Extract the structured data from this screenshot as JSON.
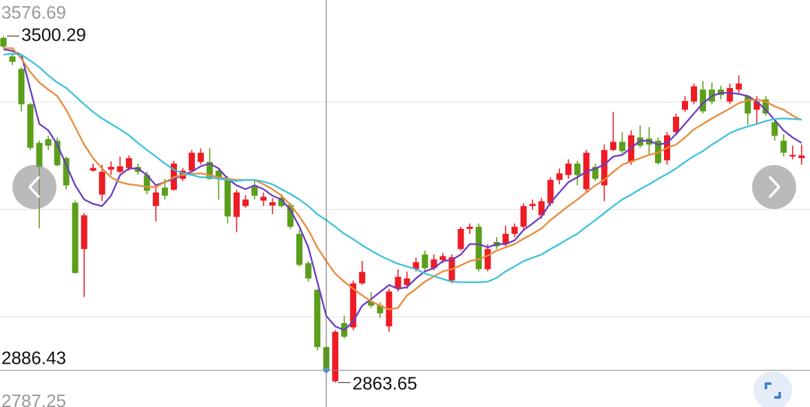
{
  "chart_data": {
    "type": "candlestick",
    "ylim": [
      2787.25,
      3576.69
    ],
    "yticks": [
      2787.25,
      3576.69
    ],
    "grid": true,
    "up_color": "#ee1c24",
    "down_color": "#5b9e1a",
    "open": [
      3497,
      3463,
      3440,
      3375,
      3304,
      3311,
      3308,
      3276,
      3194,
      3109,
      3253,
      3209,
      3255,
      3251,
      3258,
      3260,
      3245,
      3188,
      3222,
      3218,
      3238,
      3253,
      3269,
      3269,
      3253,
      3238,
      3168,
      3188,
      3226,
      3198,
      3189,
      3203,
      3190,
      3137,
      3083,
      3034,
      2929,
      2866,
      2973,
      2965,
      3046,
      3013,
      3006,
      2967,
      3036,
      3043,
      3072,
      3099,
      3074,
      3089,
      3051,
      3109,
      3146,
      3150,
      3072,
      3122,
      3118,
      3137,
      3150,
      3188,
      3171,
      3193,
      3236,
      3245,
      3266,
      3219,
      3260,
      3226,
      3291,
      3306,
      3269,
      3314,
      3312,
      3308,
      3272,
      3324,
      3365,
      3380,
      3402,
      3402,
      3402,
      3380,
      3402,
      3390,
      3365,
      3384,
      3342,
      3308,
      3279,
      3276
    ],
    "high": [
      3500.29,
      3468,
      3443,
      3377,
      3308,
      3317,
      3314,
      3279,
      3198,
      3175,
      3266,
      3264,
      3270,
      3279,
      3281,
      3266,
      3251,
      3226,
      3238,
      3271,
      3258,
      3291,
      3294,
      3294,
      3258,
      3243,
      3218,
      3208,
      3236,
      3213,
      3203,
      3210,
      3194,
      3144,
      3087,
      3036,
      2931,
      2960,
      2986,
      3051,
      3087,
      3030,
      3011,
      3036,
      3072,
      3068,
      3093,
      3106,
      3099,
      3102,
      3099,
      3150,
      3156,
      3156,
      3118,
      3131,
      3152,
      3156,
      3193,
      3200,
      3203,
      3241,
      3257,
      3274,
      3271,
      3291,
      3266,
      3301,
      3361,
      3324,
      3327,
      3336,
      3333,
      3314,
      3324,
      3358,
      3390,
      3413,
      3418,
      3415,
      3409,
      3413,
      3428,
      3392,
      3390,
      3390,
      3346,
      3320,
      3299,
      3301
    ],
    "low": [
      3478,
      3447,
      3362,
      3291,
      3147,
      3291,
      3261,
      3219,
      3064,
      3021,
      3251,
      3197,
      3245,
      3248,
      3253,
      3246,
      3210,
      3160,
      3200,
      3216,
      3234,
      3251,
      3264,
      3236,
      3200,
      3156,
      3140,
      3185,
      3200,
      3188,
      3173,
      3185,
      3146,
      3077,
      3049,
      2923,
      2882,
      2863.65,
      2945,
      2960,
      3043,
      3001,
      2983,
      2957,
      3031,
      3036,
      3068,
      3070,
      3070,
      3083,
      3046,
      3106,
      3137,
      3068,
      3068,
      3109,
      3114,
      3131,
      3144,
      3181,
      3165,
      3188,
      3228,
      3238,
      3226,
      3213,
      3234,
      3197,
      3289,
      3285,
      3264,
      3295,
      3282,
      3264,
      3264,
      3320,
      3361,
      3375,
      3358,
      3375,
      3384,
      3375,
      3396,
      3337,
      3337,
      3354,
      3308,
      3279,
      3274,
      3264
    ],
    "close": [
      3481,
      3453,
      3375,
      3295,
      3260,
      3299,
      3263,
      3226,
      3065,
      3171,
      3258,
      3251,
      3260,
      3261,
      3276,
      3251,
      3216,
      3213,
      3207,
      3266,
      3253,
      3286,
      3286,
      3238,
      3238,
      3169,
      3213,
      3200,
      3207,
      3205,
      3195,
      3188,
      3150,
      3080,
      3055,
      2929,
      2885,
      2957,
      2948,
      3046,
      3067,
      3005,
      2991,
      3031,
      3058,
      3055,
      3085,
      3074,
      3090,
      3096,
      3094,
      3146,
      3150,
      3072,
      3109,
      3114,
      3137,
      3150,
      3188,
      3192,
      3197,
      3236,
      3248,
      3266,
      3245,
      3286,
      3238,
      3291,
      3306,
      3289,
      3318,
      3299,
      3301,
      3267,
      3318,
      3352,
      3381,
      3408,
      3362,
      3380,
      3392,
      3405,
      3413,
      3358,
      3380,
      3358,
      3317,
      3286,
      3282,
      3281
    ],
    "series": [
      {
        "color": "#6a3fc0",
        "values": [
          3476,
          3473,
          3466,
          3402,
          3339,
          3327,
          3301,
          3264,
          3226,
          3200,
          3192,
          3188,
          3207,
          3245,
          3257,
          3257,
          3245,
          3226,
          3232,
          3238,
          3245,
          3251,
          3261,
          3266,
          3257,
          3238,
          3226,
          3219,
          3226,
          3219,
          3207,
          3200,
          3181,
          3150,
          3112,
          3049,
          2986,
          2967,
          2960,
          2976,
          3005,
          3017,
          3030,
          3043,
          3036,
          3039,
          3055,
          3068,
          3074,
          3087,
          3089,
          3099,
          3118,
          3118,
          3112,
          3118,
          3118,
          3125,
          3144,
          3156,
          3169,
          3194,
          3213,
          3232,
          3241,
          3251,
          3257,
          3264,
          3279,
          3282,
          3295,
          3308,
          3308,
          3301,
          3304,
          3320,
          3339,
          3358,
          3377,
          3390,
          3396,
          3396,
          3394,
          3390,
          3380,
          3365,
          3346,
          3327,
          3314,
          3304
        ]
      },
      {
        "color": "#e98b3c",
        "values": [
          3478,
          3478,
          3459,
          3434,
          3415,
          3402,
          3390,
          3365,
          3333,
          3301,
          3276,
          3257,
          3241,
          3232,
          3228,
          3226,
          3223,
          3223,
          3232,
          3241,
          3245,
          3247,
          3248,
          3245,
          3241,
          3238,
          3236,
          3236,
          3236,
          3228,
          3219,
          3207,
          3190,
          3169,
          3144,
          3112,
          3087,
          3064,
          3049,
          3036,
          3024,
          3013,
          3005,
          2998,
          3001,
          3024,
          3036,
          3049,
          3059,
          3068,
          3072,
          3079,
          3087,
          3090,
          3097,
          3106,
          3112,
          3118,
          3128,
          3137,
          3147,
          3162,
          3175,
          3188,
          3200,
          3213,
          3226,
          3236,
          3251,
          3264,
          3270,
          3276,
          3282,
          3286,
          3295,
          3301,
          3314,
          3329,
          3339,
          3349,
          3358,
          3367,
          3377,
          3382,
          3384,
          3380,
          3371,
          3365,
          3354,
          3346
        ]
      },
      {
        "color": "#3ec3da",
        "values": [
          3466,
          3468,
          3466,
          3455,
          3443,
          3428,
          3415,
          3405,
          3390,
          3375,
          3361,
          3349,
          3339,
          3329,
          3318,
          3304,
          3291,
          3279,
          3266,
          3255,
          3248,
          3245,
          3241,
          3241,
          3238,
          3236,
          3234,
          3236,
          3236,
          3233,
          3228,
          3219,
          3210,
          3200,
          3188,
          3173,
          3162,
          3150,
          3137,
          3127,
          3116,
          3106,
          3097,
          3089,
          3082,
          3077,
          3072,
          3064,
          3059,
          3054,
          3049,
          3048,
          3048,
          3048,
          3049,
          3056,
          3068,
          3077,
          3087,
          3093,
          3099,
          3109,
          3118,
          3128,
          3137,
          3150,
          3162,
          3175,
          3188,
          3200,
          3209,
          3219,
          3228,
          3238,
          3247,
          3257,
          3269,
          3280,
          3289,
          3301,
          3311,
          3322,
          3329,
          3334,
          3339,
          3344,
          3348,
          3349,
          3348,
          3347
        ]
      }
    ],
    "annotations": {
      "high": 3500.29,
      "low": 2863.65,
      "crosshair": 2886.43
    }
  }
}
